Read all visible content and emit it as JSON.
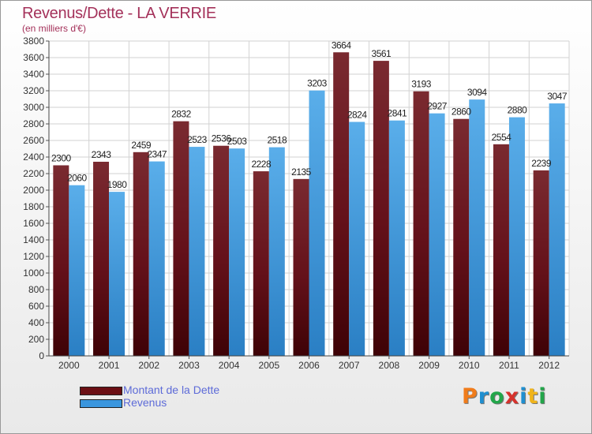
{
  "chart_title": "Revenus/Dette - LA VERRIE",
  "chart_subtitle": "(en milliers d'€)",
  "brand": {
    "text": "Proxiti",
    "colors": [
      "#f07c1b",
      "#1f8fd0",
      "#22a64a",
      "#d6322c",
      "#1f8fd0",
      "#f0b41b",
      "#22a64a"
    ]
  },
  "chart_data": {
    "type": "bar",
    "title": "Revenus/Dette - LA VERRIE",
    "subtitle": "(en milliers d'€)",
    "xlabel": "",
    "ylabel": "",
    "categories": [
      "2000",
      "2001",
      "2002",
      "2003",
      "2004",
      "2005",
      "2006",
      "2007",
      "2008",
      "2009",
      "2010",
      "2011",
      "2012"
    ],
    "series": [
      {
        "name": "Montant de la Dette",
        "color": "#6b0f14",
        "values": [
          2300,
          2343,
          2459,
          2832,
          2536,
          2228,
          2135,
          3664,
          3561,
          3193,
          2860,
          2554,
          2239
        ]
      },
      {
        "name": "Revenus",
        "color": "#3a96de",
        "values": [
          2060,
          1980,
          2347,
          2523,
          2503,
          2518,
          3203,
          2824,
          2841,
          2927,
          3094,
          2880,
          3047
        ]
      }
    ],
    "ylim": [
      0,
      3800
    ],
    "ytick_step": 200,
    "grid": true,
    "legend_position": "bottom-left"
  }
}
